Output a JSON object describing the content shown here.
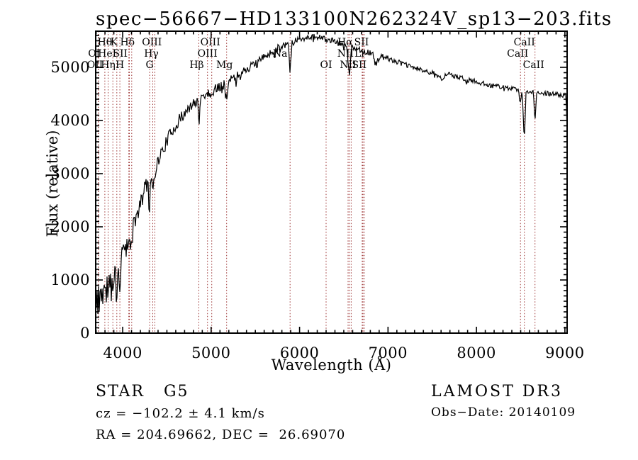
{
  "title": "spec−56667−HD133100N262324V_sp13−203.fits",
  "footer": {
    "class_label": "STAR   G5",
    "cz": "cz = −102.2 ± 4.1 km/s",
    "radec": "RA = 204.69662, DEC =  26.69070",
    "survey": "LAMOST DR3",
    "obs_date": "Obs−Date: 20140109"
  },
  "chart_data": {
    "type": "line",
    "title": "spec−56667−HD133100N262324V_sp13−203.fits",
    "xlabel": "Wavelength (Å)",
    "ylabel": "Flux (relative)",
    "xlim": [
      3695,
      9025
    ],
    "ylim": [
      0,
      5680
    ],
    "x_ticks": [
      4000,
      5000,
      6000,
      7000,
      8000,
      9000
    ],
    "y_ticks": [
      0,
      1000,
      2000,
      3000,
      4000,
      5000
    ],
    "x_minor_step": 100,
    "y_minor_step": 100,
    "grid": false,
    "legend": "none",
    "line_color": "#000000",
    "frame_color": "#000000",
    "marker_color": "#9c3333",
    "series": [
      {
        "name": "LAMOST spectrum (flux vs wavelength, anchor points)",
        "anchor_points": [
          [
            3690,
            260
          ],
          [
            3700,
            650
          ],
          [
            3706,
            200
          ],
          [
            3714,
            850
          ],
          [
            3722,
            420
          ],
          [
            3728,
            900
          ],
          [
            3736,
            350
          ],
          [
            3745,
            950
          ],
          [
            3755,
            600
          ],
          [
            3765,
            1000
          ],
          [
            3775,
            500
          ],
          [
            3790,
            980
          ],
          [
            3798,
            700
          ],
          [
            3810,
            1000
          ],
          [
            3820,
            900
          ],
          [
            3835,
            780
          ],
          [
            3848,
            1080
          ],
          [
            3860,
            950
          ],
          [
            3875,
            1120
          ],
          [
            3889,
            850
          ],
          [
            3900,
            1150
          ],
          [
            3920,
            1250
          ],
          [
            3934,
            620
          ],
          [
            3945,
            1250
          ],
          [
            3955,
            1300
          ],
          [
            3968,
            700
          ],
          [
            3980,
            1380
          ],
          [
            4000,
            1600
          ],
          [
            4020,
            1700
          ],
          [
            4045,
            1780
          ],
          [
            4069,
            1580
          ],
          [
            4085,
            1800
          ],
          [
            4102,
            1600
          ],
          [
            4120,
            2000
          ],
          [
            4145,
            2150
          ],
          [
            4170,
            2250
          ],
          [
            4200,
            2450
          ],
          [
            4230,
            2600
          ],
          [
            4260,
            2750
          ],
          [
            4290,
            2870
          ],
          [
            4305,
            2300
          ],
          [
            4315,
            2900
          ],
          [
            4330,
            2950
          ],
          [
            4340,
            2700
          ],
          [
            4355,
            3000
          ],
          [
            4363,
            2950
          ],
          [
            4380,
            3150
          ],
          [
            4410,
            3280
          ],
          [
            4440,
            3400
          ],
          [
            4470,
            3500
          ],
          [
            4500,
            3620
          ],
          [
            4540,
            3750
          ],
          [
            4580,
            3870
          ],
          [
            4620,
            3950
          ],
          [
            4660,
            4050
          ],
          [
            4700,
            4120
          ],
          [
            4740,
            4200
          ],
          [
            4780,
            4280
          ],
          [
            4820,
            4340
          ],
          [
            4845,
            4380
          ],
          [
            4861,
            4060
          ],
          [
            4880,
            4420
          ],
          [
            4910,
            4470
          ],
          [
            4940,
            4500
          ],
          [
            4959,
            4480
          ],
          [
            4980,
            4530
          ],
          [
            5007,
            4500
          ],
          [
            5040,
            4580
          ],
          [
            5080,
            4630
          ],
          [
            5120,
            4670
          ],
          [
            5155,
            4680
          ],
          [
            5175,
            4380
          ],
          [
            5200,
            4720
          ],
          [
            5240,
            4780
          ],
          [
            5290,
            4840
          ],
          [
            5340,
            4900
          ],
          [
            5390,
            4950
          ],
          [
            5440,
            5010
          ],
          [
            5490,
            5060
          ],
          [
            5540,
            5120
          ],
          [
            5590,
            5180
          ],
          [
            5640,
            5240
          ],
          [
            5690,
            5300
          ],
          [
            5740,
            5350
          ],
          [
            5790,
            5400
          ],
          [
            5840,
            5440
          ],
          [
            5875,
            5460
          ],
          [
            5893,
            4870
          ],
          [
            5915,
            5480
          ],
          [
            5950,
            5500
          ],
          [
            6000,
            5530
          ],
          [
            6050,
            5550
          ],
          [
            6100,
            5570
          ],
          [
            6150,
            5580
          ],
          [
            6200,
            5570
          ],
          [
            6250,
            5560
          ],
          [
            6300,
            5520
          ],
          [
            6350,
            5510
          ],
          [
            6400,
            5480
          ],
          [
            6450,
            5450
          ],
          [
            6500,
            5430
          ],
          [
            6530,
            5400
          ],
          [
            6563,
            4880
          ],
          [
            6590,
            5380
          ],
          [
            6640,
            5360
          ],
          [
            6690,
            5330
          ],
          [
            6730,
            5300
          ],
          [
            6780,
            5280
          ],
          [
            6830,
            5230
          ],
          [
            6870,
            5080
          ],
          [
            6910,
            5210
          ],
          [
            6960,
            5190
          ],
          [
            7010,
            5160
          ],
          [
            7060,
            5130
          ],
          [
            7110,
            5100
          ],
          [
            7160,
            5070
          ],
          [
            7210,
            5040
          ],
          [
            7260,
            5010
          ],
          [
            7310,
            4990
          ],
          [
            7360,
            4960
          ],
          [
            7410,
            4930
          ],
          [
            7460,
            4910
          ],
          [
            7510,
            4890
          ],
          [
            7560,
            4860
          ],
          [
            7605,
            4780
          ],
          [
            7650,
            4870
          ],
          [
            7700,
            4860
          ],
          [
            7750,
            4830
          ],
          [
            7800,
            4810
          ],
          [
            7850,
            4790
          ],
          [
            7900,
            4770
          ],
          [
            7950,
            4750
          ],
          [
            8000,
            4730
          ],
          [
            8060,
            4700
          ],
          [
            8120,
            4680
          ],
          [
            8180,
            4660
          ],
          [
            8230,
            4650
          ],
          [
            8280,
            4630
          ],
          [
            8330,
            4620
          ],
          [
            8380,
            4600
          ],
          [
            8430,
            4590
          ],
          [
            8470,
            4580
          ],
          [
            8498,
            4300
          ],
          [
            8515,
            4570
          ],
          [
            8542,
            3620
          ],
          [
            8560,
            4560
          ],
          [
            8590,
            4550
          ],
          [
            8620,
            4540
          ],
          [
            8645,
            4530
          ],
          [
            8662,
            3950
          ],
          [
            8680,
            4530
          ],
          [
            8720,
            4520
          ],
          [
            8760,
            4520
          ],
          [
            8800,
            4510
          ],
          [
            8840,
            4500
          ],
          [
            8880,
            4500
          ],
          [
            8920,
            4490
          ],
          [
            8950,
            4480
          ],
          [
            8980,
            4470
          ],
          [
            9000,
            4490
          ],
          [
            9012,
            4450
          ],
          [
            9020,
            4200
          ],
          [
            9025,
            3700
          ]
        ]
      }
    ],
    "noise_profile": [
      [
        3780,
        260
      ],
      [
        3980,
        200
      ],
      [
        4300,
        155
      ],
      [
        4700,
        120
      ],
      [
        5300,
        95
      ],
      [
        6000,
        75
      ],
      [
        7000,
        55
      ],
      [
        8200,
        48
      ],
      [
        9100,
        42
      ]
    ],
    "spectral_lines": [
      {
        "label": "Hθ",
        "wavelengths": [
          3798
        ],
        "row": 1,
        "dx": 0
      },
      {
        "label": "K",
        "wavelengths": [
          3934
        ],
        "row": 1,
        "dx": -4
      },
      {
        "label": "Hδ",
        "wavelengths": [
          4102
        ],
        "row": 1,
        "dx": -6
      },
      {
        "label": "OIII",
        "wavelengths": [
          4363
        ],
        "row": 1,
        "dx": -4
      },
      {
        "label": "OIII",
        "wavelengths": [
          5007
        ],
        "row": 1,
        "dx": -2
      },
      {
        "label": "Hα",
        "wavelengths": [
          6563
        ],
        "row": 1,
        "dx": -6
      },
      {
        "label": "SII",
        "wavelengths": [
          6717
        ],
        "row": 1,
        "dx": -2
      },
      {
        "label": "CaII",
        "wavelengths": [
          8542
        ],
        "row": 1,
        "dx": 0
      },
      {
        "label": "OI",
        "wavelengths": [
          3725
        ],
        "row": 2,
        "dx": -6
      },
      {
        "label": "HeI",
        "wavelengths": [
          3889
        ],
        "row": 2,
        "dx": -8
      },
      {
        "label": "SII",
        "wavelengths": [
          4069,
          4076
        ],
        "row": 2,
        "dx": -12
      },
      {
        "label": "Hγ",
        "wavelengths": [
          4340
        ],
        "row": 2,
        "dx": -2
      },
      {
        "label": "OIII",
        "wavelengths": [
          4959
        ],
        "row": 2,
        "dx": 0
      },
      {
        "label": "Na",
        "wavelengths": [
          5893
        ],
        "row": 2,
        "dx": -14
      },
      {
        "label": "NII",
        "wavelengths": [
          6584
        ],
        "row": 2,
        "dx": -8
      },
      {
        "label": "Li",
        "wavelengths": [
          6708
        ],
        "row": 2,
        "dx": -4
      },
      {
        "label": "CaII",
        "wavelengths": [
          8498
        ],
        "row": 2,
        "dx": -4
      },
      {
        "label": "OII",
        "wavelengths": [
          3727
        ],
        "row": 3,
        "dx": -5
      },
      {
        "label": "Hη",
        "wavelengths": [
          3835
        ],
        "row": 3,
        "dx": 0
      },
      {
        "label": "H",
        "wavelengths": [
          3968
        ],
        "row": 3,
        "dx": 0
      },
      {
        "label": "G",
        "wavelengths": [
          4305
        ],
        "row": 3,
        "dx": 0
      },
      {
        "label": "Hβ",
        "wavelengths": [
          4861
        ],
        "row": 3,
        "dx": -3
      },
      {
        "label": "Mg",
        "wavelengths": [
          5175
        ],
        "row": 3,
        "dx": -3
      },
      {
        "label": "OI",
        "wavelengths": [
          6300
        ],
        "row": 3,
        "dx": 0
      },
      {
        "label": "NII",
        "wavelengths": [
          6548
        ],
        "row": 3,
        "dx": 0
      },
      {
        "label": "SII",
        "wavelengths": [
          6731
        ],
        "row": 3,
        "dx": -7
      },
      {
        "label": "CaII",
        "wavelengths": [
          8662
        ],
        "row": 3,
        "dx": -2
      }
    ]
  }
}
